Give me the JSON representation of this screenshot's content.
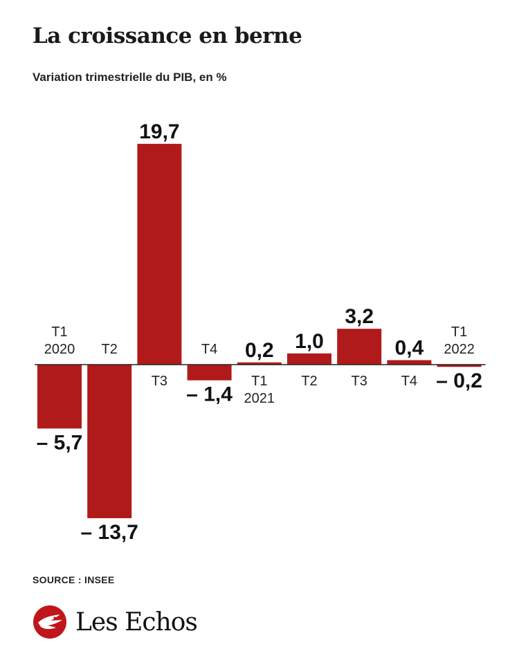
{
  "header": {
    "title": "La croissance en berne",
    "subtitle": "Variation trimestrielle du PIB, en %"
  },
  "footer": {
    "source": "SOURCE : INSEE",
    "brand": "Les Echos"
  },
  "colors": {
    "bar": "#b11a1a",
    "axis": "#222222",
    "text": "#1a1a1a"
  },
  "chart_data": {
    "type": "bar",
    "categories": [
      [
        "T1",
        "2020"
      ],
      [
        "T2"
      ],
      [
        "T3"
      ],
      [
        "T4"
      ],
      [
        "T1",
        "2021"
      ],
      [
        "T2"
      ],
      [
        "T3"
      ],
      [
        "T4"
      ],
      [
        "T1",
        "2022"
      ]
    ],
    "values": [
      -5.7,
      -13.7,
      19.7,
      -1.4,
      0.2,
      1.0,
      3.2,
      0.4,
      -0.2
    ],
    "value_labels": [
      "– 5,7",
      "– 13,7",
      "19,7",
      "– 1,4",
      "0,2",
      "1,0",
      "3,2",
      "0,4",
      "– 0,2"
    ],
    "title": "La croissance en berne",
    "subtitle": "Variation trimestrielle du PIB, en %",
    "xlabel": "",
    "ylabel": "",
    "ylim": [
      -13.7,
      19.7
    ],
    "grid": false,
    "legend": "none"
  }
}
